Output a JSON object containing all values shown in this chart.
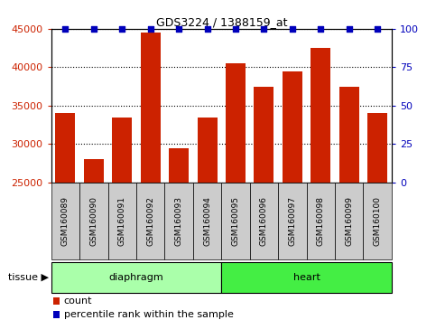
{
  "title": "GDS3224 / 1388159_at",
  "samples": [
    "GSM160089",
    "GSM160090",
    "GSM160091",
    "GSM160092",
    "GSM160093",
    "GSM160094",
    "GSM160095",
    "GSM160096",
    "GSM160097",
    "GSM160098",
    "GSM160099",
    "GSM160100"
  ],
  "counts": [
    34000,
    28000,
    33500,
    44500,
    29500,
    33500,
    40500,
    37500,
    39500,
    42500,
    37500,
    34000
  ],
  "percentiles": [
    100,
    100,
    100,
    100,
    100,
    100,
    100,
    100,
    100,
    100,
    100,
    100
  ],
  "tissue_groups": [
    {
      "label": "diaphragm",
      "start": 0,
      "end": 5,
      "color": "#AAFFAA"
    },
    {
      "label": "heart",
      "start": 6,
      "end": 11,
      "color": "#44EE44"
    }
  ],
  "ylim_left": [
    25000,
    45000
  ],
  "ylim_right": [
    0,
    100
  ],
  "yticks_left": [
    25000,
    30000,
    35000,
    40000,
    45000
  ],
  "yticks_right": [
    0,
    25,
    50,
    75,
    100
  ],
  "bar_color": "#CC2200",
  "percentile_color": "#0000BB",
  "bg_color": "#CCCCCC",
  "tissue_label": "tissue",
  "legend_count": "count",
  "legend_pct": "percentile rank within the sample",
  "legend_count_color": "#CC2200",
  "legend_pct_color": "#0000BB"
}
